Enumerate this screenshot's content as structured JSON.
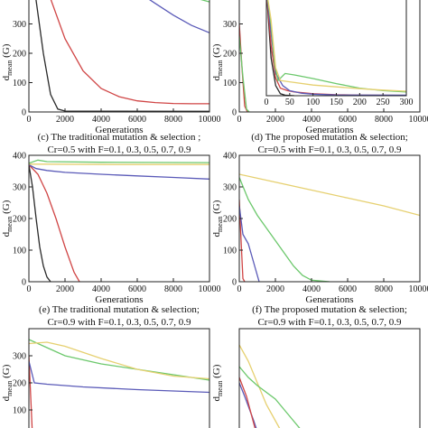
{
  "chart_data": [
    {
      "id": "a",
      "type": "line",
      "title_lines": [],
      "xlabel": "Generations",
      "ylabel": "d_mean (G)",
      "xlim": [
        0,
        10000
      ],
      "ylim": [
        0,
        400
      ],
      "xticks": [
        0,
        2000,
        4000,
        6000,
        8000,
        10000
      ],
      "yticks": [
        0,
        100,
        200,
        300
      ],
      "series": [
        {
          "color": "#2a2a2a",
          "points": [
            [
              0,
              560
            ],
            [
              400,
              380
            ],
            [
              800,
              200
            ],
            [
              1200,
              60
            ],
            [
              1600,
              10
            ],
            [
              2000,
              3
            ],
            [
              10000,
              2
            ]
          ]
        },
        {
          "color": "#d04545",
          "points": [
            [
              0,
              560
            ],
            [
              1000,
              420
            ],
            [
              2000,
              250
            ],
            [
              3000,
              140
            ],
            [
              4000,
              80
            ],
            [
              5000,
              52
            ],
            [
              6000,
              38
            ],
            [
              7000,
              32
            ],
            [
              8000,
              29
            ],
            [
              9000,
              28
            ],
            [
              10000,
              28
            ]
          ]
        },
        {
          "color": "#5a5ab8",
          "points": [
            [
              6500,
              390
            ],
            [
              7000,
              370
            ],
            [
              8000,
              330
            ],
            [
              9000,
              295
            ],
            [
              10000,
              270
            ]
          ]
        },
        {
          "color": "#6cc86c",
          "points": [
            [
              8000,
              412
            ],
            [
              9000,
              392
            ],
            [
              10000,
              375
            ]
          ]
        }
      ]
    },
    {
      "id": "b",
      "type": "line",
      "title_lines": [],
      "xlabel": "Generations",
      "ylabel": "d_mean (G)",
      "xlim": [
        0,
        10000
      ],
      "ylim": [
        0,
        400
      ],
      "xticks": [
        0,
        2000,
        4000,
        6000,
        8000,
        10000
      ],
      "yticks": [
        0,
        100,
        200,
        300
      ],
      "series": [
        {
          "color": "#d04545",
          "points": [
            [
              0,
              300
            ],
            [
              150,
              150
            ],
            [
              300,
              20
            ],
            [
              450,
              0
            ]
          ]
        },
        {
          "color": "#6cc86c",
          "points": [
            [
              0,
              260
            ],
            [
              200,
              120
            ],
            [
              400,
              10
            ],
            [
              550,
              0
            ]
          ]
        }
      ],
      "inset": {
        "type": "line",
        "xlim": [
          0,
          300
        ],
        "ylim": [
          0,
          400
        ],
        "xticks": [
          0,
          50,
          100,
          150,
          200,
          250,
          300
        ],
        "series": [
          {
            "color": "#2a2a2a",
            "points": [
              [
                0,
                420
              ],
              [
                10,
                150
              ],
              [
                20,
                40
              ],
              [
                30,
                8
              ],
              [
                40,
                2
              ],
              [
                60,
                0
              ]
            ]
          },
          {
            "color": "#d04545",
            "points": [
              [
                0,
                420
              ],
              [
                10,
                200
              ],
              [
                20,
                70
              ],
              [
                30,
                30
              ],
              [
                45,
                20
              ],
              [
                60,
                15
              ],
              [
                100,
                8
              ],
              [
                150,
                4
              ],
              [
                200,
                2
              ],
              [
                300,
                1
              ]
            ]
          },
          {
            "color": "#5a5ab8",
            "points": [
              [
                0,
                420
              ],
              [
                10,
                250
              ],
              [
                20,
                90
              ],
              [
                35,
                40
              ],
              [
                50,
                20
              ],
              [
                75,
                10
              ],
              [
                100,
                6
              ],
              [
                150,
                3
              ],
              [
                300,
                2
              ]
            ]
          },
          {
            "color": "#6cc86c",
            "points": [
              [
                0,
                420
              ],
              [
                10,
                280
              ],
              [
                18,
                120
              ],
              [
                25,
                60
              ],
              [
                40,
                88
              ],
              [
                60,
                82
              ],
              [
                100,
                68
              ],
              [
                150,
                48
              ],
              [
                200,
                30
              ],
              [
                250,
                20
              ],
              [
                300,
                15
              ]
            ]
          },
          {
            "color": "#e6d070",
            "points": [
              [
                0,
                420
              ],
              [
                10,
                300
              ],
              [
                20,
                110
              ],
              [
                30,
                60
              ],
              [
                50,
                55
              ],
              [
                100,
                42
              ],
              [
                150,
                35
              ],
              [
                200,
                28
              ],
              [
                250,
                22
              ],
              [
                300,
                18
              ]
            ]
          }
        ]
      }
    },
    {
      "id": "c",
      "type": "line",
      "title_lines": [
        "(c) The traditional mutation & selection ;",
        "Cr=0.5 with F=0.1, 0.3, 0.5, 0.7, 0.9"
      ],
      "xlabel": "Generations",
      "ylabel": "d_mean (G)",
      "xlim": [
        0,
        10000
      ],
      "ylim": [
        0,
        400
      ],
      "xticks": [
        0,
        2000,
        4000,
        6000,
        8000,
        10000
      ],
      "yticks": [
        0,
        100,
        200,
        300,
        400
      ],
      "series": [
        {
          "color": "#2a2a2a",
          "points": [
            [
              0,
              370
            ],
            [
              200,
              300
            ],
            [
              400,
              200
            ],
            [
              600,
              110
            ],
            [
              800,
              50
            ],
            [
              1000,
              15
            ],
            [
              1200,
              0
            ]
          ]
        },
        {
          "color": "#d04545",
          "points": [
            [
              0,
              370
            ],
            [
              500,
              340
            ],
            [
              1000,
              280
            ],
            [
              1500,
              200
            ],
            [
              2000,
              110
            ],
            [
              2500,
              30
            ],
            [
              2800,
              0
            ]
          ]
        },
        {
          "color": "#5a5ab8",
          "points": [
            [
              0,
              370
            ],
            [
              400,
              358
            ],
            [
              1000,
              352
            ],
            [
              2000,
              346
            ],
            [
              4000,
              340
            ],
            [
              6000,
              335
            ],
            [
              8000,
              330
            ],
            [
              10000,
              325
            ]
          ]
        },
        {
          "color": "#6cc86c",
          "points": [
            [
              0,
              375
            ],
            [
              500,
              385
            ],
            [
              1000,
              380
            ],
            [
              4000,
              378
            ],
            [
              10000,
              377
            ]
          ]
        },
        {
          "color": "#e6d070",
          "points": [
            [
              0,
              372
            ],
            [
              1000,
              372
            ],
            [
              5000,
              371
            ],
            [
              10000,
              371
            ]
          ]
        }
      ]
    },
    {
      "id": "d",
      "type": "line",
      "title_lines": [
        "(d) The proposed mutation & selection;",
        "Cr=0.5 with F=0.1, 0.3, 0.5, 0.7, 0.9"
      ],
      "xlabel": "Generations",
      "ylabel": "d_mean (G)",
      "xlim": [
        0,
        10000
      ],
      "ylim": [
        0,
        400
      ],
      "xticks": [
        0,
        2000,
        4000,
        6000,
        8000,
        10000
      ],
      "yticks": [
        0,
        100,
        200,
        300,
        400
      ],
      "series": [
        {
          "color": "#d04545",
          "points": [
            [
              0,
              260
            ],
            [
              100,
              130
            ],
            [
              200,
              10
            ],
            [
              300,
              0
            ]
          ]
        },
        {
          "color": "#5a5ab8",
          "points": [
            [
              0,
              240
            ],
            [
              200,
              150
            ],
            [
              500,
              120
            ],
            [
              800,
              60
            ],
            [
              1100,
              0
            ]
          ]
        },
        {
          "color": "#6cc86c",
          "points": [
            [
              0,
              330
            ],
            [
              500,
              260
            ],
            [
              1000,
              210
            ],
            [
              1500,
              170
            ],
            [
              2000,
              130
            ],
            [
              2500,
              90
            ],
            [
              3000,
              50
            ],
            [
              3500,
              20
            ],
            [
              4000,
              5
            ],
            [
              5000,
              0
            ]
          ]
        },
        {
          "color": "#e6d070",
          "points": [
            [
              0,
              340
            ],
            [
              2000,
              315
            ],
            [
              4000,
              290
            ],
            [
              6000,
              265
            ],
            [
              8000,
              240
            ],
            [
              10000,
              210
            ]
          ]
        }
      ]
    },
    {
      "id": "e",
      "type": "line",
      "title_lines": [
        "(e) The traditional mutation & selection;",
        "Cr=0.9 with F=0.1, 0.3, 0.5, 0.7, 0.9"
      ],
      "xlabel": "",
      "ylabel": "d_mean (G)",
      "xlim": [
        0,
        10000
      ],
      "ylim": [
        0,
        400
      ],
      "xticks": [],
      "yticks": [
        100,
        200,
        300
      ],
      "series": [
        {
          "color": "#d04545",
          "points": [
            [
              0,
              300
            ],
            [
              100,
              150
            ],
            [
              200,
              0
            ]
          ]
        },
        {
          "color": "#5a5ab8",
          "points": [
            [
              0,
              280
            ],
            [
              300,
              200
            ],
            [
              1000,
              195
            ],
            [
              3000,
              185
            ],
            [
              6000,
              175
            ],
            [
              10000,
              165
            ]
          ]
        },
        {
          "color": "#6cc86c",
          "points": [
            [
              0,
              360
            ],
            [
              1000,
              330
            ],
            [
              2000,
              300
            ],
            [
              4000,
              270
            ],
            [
              6000,
              250
            ],
            [
              8000,
              230
            ],
            [
              10000,
              210
            ]
          ]
        },
        {
          "color": "#e6d070",
          "points": [
            [
              0,
              345
            ],
            [
              1000,
              350
            ],
            [
              2000,
              335
            ],
            [
              4000,
              290
            ],
            [
              6000,
              250
            ],
            [
              8000,
              225
            ],
            [
              10000,
              215
            ]
          ]
        }
      ]
    },
    {
      "id": "f",
      "type": "line",
      "title_lines": [
        "(f) The proposed mutation & selection;",
        "Cr=0.9 with F=0.1, 0.3, 0.5, 0.7, 0.9"
      ],
      "xlabel": "",
      "ylabel": "d_mean (G)",
      "xlim": [
        0,
        10000
      ],
      "ylim": [
        0,
        400
      ],
      "xticks": [],
      "yticks": [],
      "series": [
        {
          "color": "#5a5ab8",
          "points": [
            [
              0,
              200
            ],
            [
              300,
              150
            ],
            [
              800,
              60
            ],
            [
              1100,
              0
            ]
          ]
        },
        {
          "color": "#d04545",
          "points": [
            [
              0,
              220
            ],
            [
              400,
              150
            ],
            [
              800,
              50
            ],
            [
              1000,
              0
            ]
          ]
        },
        {
          "color": "#e6d070",
          "points": [
            [
              0,
              340
            ],
            [
              500,
              280
            ],
            [
              1000,
              200
            ],
            [
              1500,
              120
            ],
            [
              2000,
              60
            ],
            [
              2500,
              0
            ]
          ]
        },
        {
          "color": "#6cc86c",
          "points": [
            [
              0,
              260
            ],
            [
              500,
              220
            ],
            [
              1000,
              190
            ],
            [
              2000,
              140
            ],
            [
              2500,
              100
            ],
            [
              3000,
              60
            ],
            [
              3500,
              20
            ],
            [
              3800,
              0
            ]
          ]
        }
      ]
    }
  ]
}
